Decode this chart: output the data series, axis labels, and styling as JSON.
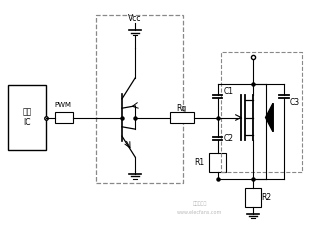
{
  "bg_color": "#ffffff",
  "line_color": "#000000",
  "dashed_color": "#888888",
  "watermark": "www.elecfans.com",
  "vcc_label": "Vcc",
  "pwm_label": "PWM",
  "rg_label": "Rg",
  "c1_label": "C1",
  "c2_label": "C2",
  "c3_label": "C3",
  "r1_label": "R1",
  "r2_label": "R2",
  "ic_label": "电源\nIC"
}
